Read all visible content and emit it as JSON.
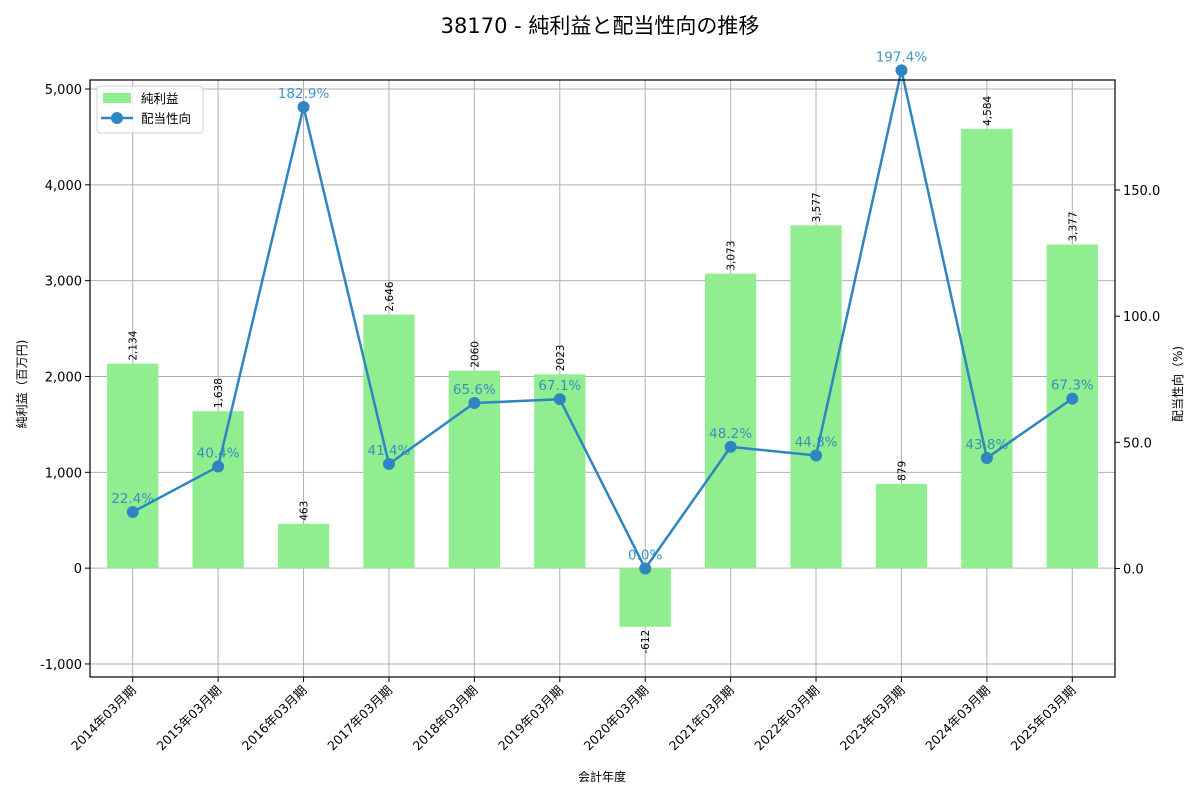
{
  "chart_data": {
    "type": "bar+line",
    "title": "38170 - 純利益と配当性向の推移",
    "xlabel": "会計年度",
    "ylabel": "純利益（百万円)",
    "ylabel_right": "配当性向（%)",
    "categories": [
      "2014年03月期",
      "2015年03月期",
      "2016年03月期",
      "2017年03月期",
      "2018年03月期",
      "2019年03月期",
      "2020年03月期",
      "2021年03月期",
      "2022年03月期",
      "2023年03月期",
      "2024年03月期",
      "2025年03月期"
    ],
    "series": [
      {
        "name": "純利益",
        "type": "bar",
        "axis": "left",
        "color": "#90ee90",
        "values": [
          2134,
          1638,
          463,
          2646,
          2060,
          2023,
          -612,
          3073,
          3577,
          879,
          4584,
          3377
        ],
        "labels": [
          "2,134",
          "1,638",
          "463",
          "2,646",
          "2060",
          "2023",
          "-612",
          "3,073",
          "3,577",
          "879",
          "4,584",
          "3,377"
        ]
      },
      {
        "name": "配当性向",
        "type": "line",
        "axis": "right",
        "color": "#2e86c1",
        "values": [
          22.4,
          40.4,
          182.9,
          41.4,
          65.6,
          67.1,
          0.0,
          48.2,
          44.8,
          197.4,
          43.8,
          67.3
        ],
        "labels": [
          "22.4%",
          "40.4%",
          "182.9%",
          "41.4%",
          "65.6%",
          "67.1%",
          "0.0%",
          "48.2%",
          "44.8%",
          "197.4%",
          "43.8%",
          "67.3%"
        ]
      }
    ],
    "ylim": [
      -1136,
      5094
    ],
    "ylim_right": [
      -43,
      193.6
    ],
    "yticks": [
      -1000,
      0,
      1000,
      2000,
      3000,
      4000,
      5000
    ],
    "ytick_labels": [
      "-1,000",
      "0",
      "1,000",
      "2,000",
      "3,000",
      "4,000",
      "5,000"
    ],
    "yticks_right": [
      0,
      50,
      100,
      150
    ],
    "ytick_labels_right": [
      "0.0",
      "50.0",
      "100.0",
      "150.0"
    ],
    "grid": true,
    "legend_position": "upper left"
  }
}
